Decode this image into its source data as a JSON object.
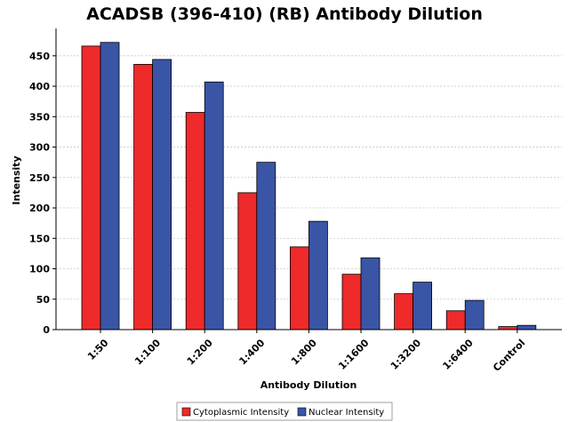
{
  "chart_data": {
    "type": "bar",
    "title": "ACADSB (396-410) (RB) Antibody Dilution",
    "xlabel": "Antibody Dilution",
    "ylabel": "Intensity",
    "categories": [
      "1:50",
      "1:100",
      "1:200",
      "1:400",
      "1:800",
      "1:1600",
      "1:3200",
      "1:6400",
      "Control"
    ],
    "series": [
      {
        "name": "Cytoplasmic Intensity",
        "color": "#ee2a2a",
        "values": [
          466,
          436,
          357,
          225,
          136,
          91,
          59,
          31,
          5
        ]
      },
      {
        "name": "Nuclear Intensity",
        "color": "#3a55a6",
        "values": [
          472,
          444,
          407,
          275,
          178,
          118,
          78,
          48,
          7
        ]
      }
    ],
    "yticks": [
      0,
      50,
      100,
      150,
      200,
      250,
      300,
      350,
      400,
      450
    ],
    "ylim": [
      0,
      495
    ],
    "grid": true,
    "legend": "bottom"
  }
}
